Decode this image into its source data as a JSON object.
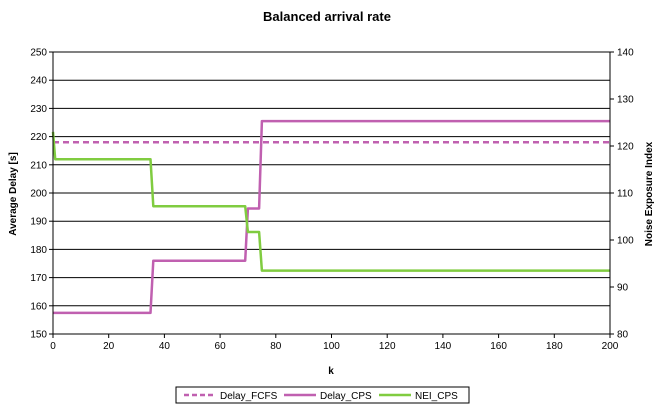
{
  "chart_data": {
    "type": "line",
    "title": "Balanced arrival rate",
    "xlabel": "k",
    "ylabel_left": "Average Delay [s]",
    "ylabel_right": "Noise Exposure Index",
    "xlim": [
      0,
      200
    ],
    "ylim_left": [
      150,
      250
    ],
    "ylim_right": [
      80,
      140
    ],
    "x_ticks": [
      "0",
      "20",
      "40",
      "60",
      "80",
      "100",
      "120",
      "140",
      "160",
      "180",
      "200"
    ],
    "y_left_ticks": [
      "150",
      "160",
      "170",
      "180",
      "190",
      "200",
      "210",
      "220",
      "230",
      "240",
      "250"
    ],
    "y_right_ticks": [
      "80",
      "90",
      "100",
      "110",
      "120",
      "130",
      "140"
    ],
    "grid": "horizontal",
    "legend_position": "bottom",
    "series": [
      {
        "name": "Delay_FCFS",
        "axis": "left",
        "color": "#C060B0",
        "dash": "dashed",
        "x": [
          0,
          200
        ],
        "y": [
          218,
          218
        ]
      },
      {
        "name": "Delay_CPS",
        "axis": "left",
        "color": "#C060B0",
        "dash": "solid",
        "x": [
          0,
          35,
          36,
          69,
          70,
          74,
          75,
          200
        ],
        "y": [
          157.5,
          157.5,
          176,
          176,
          194.5,
          194.5,
          225.5,
          225.5
        ]
      },
      {
        "name": "NEI_CPS",
        "axis": "right",
        "color": "#80CC40",
        "dash": "solid",
        "x": [
          0,
          0.8,
          35,
          36,
          69,
          70,
          74,
          75,
          200
        ],
        "y": [
          123,
          117.2,
          117.2,
          107.2,
          107.2,
          101.7,
          101.7,
          93.5,
          93.5
        ]
      }
    ]
  }
}
